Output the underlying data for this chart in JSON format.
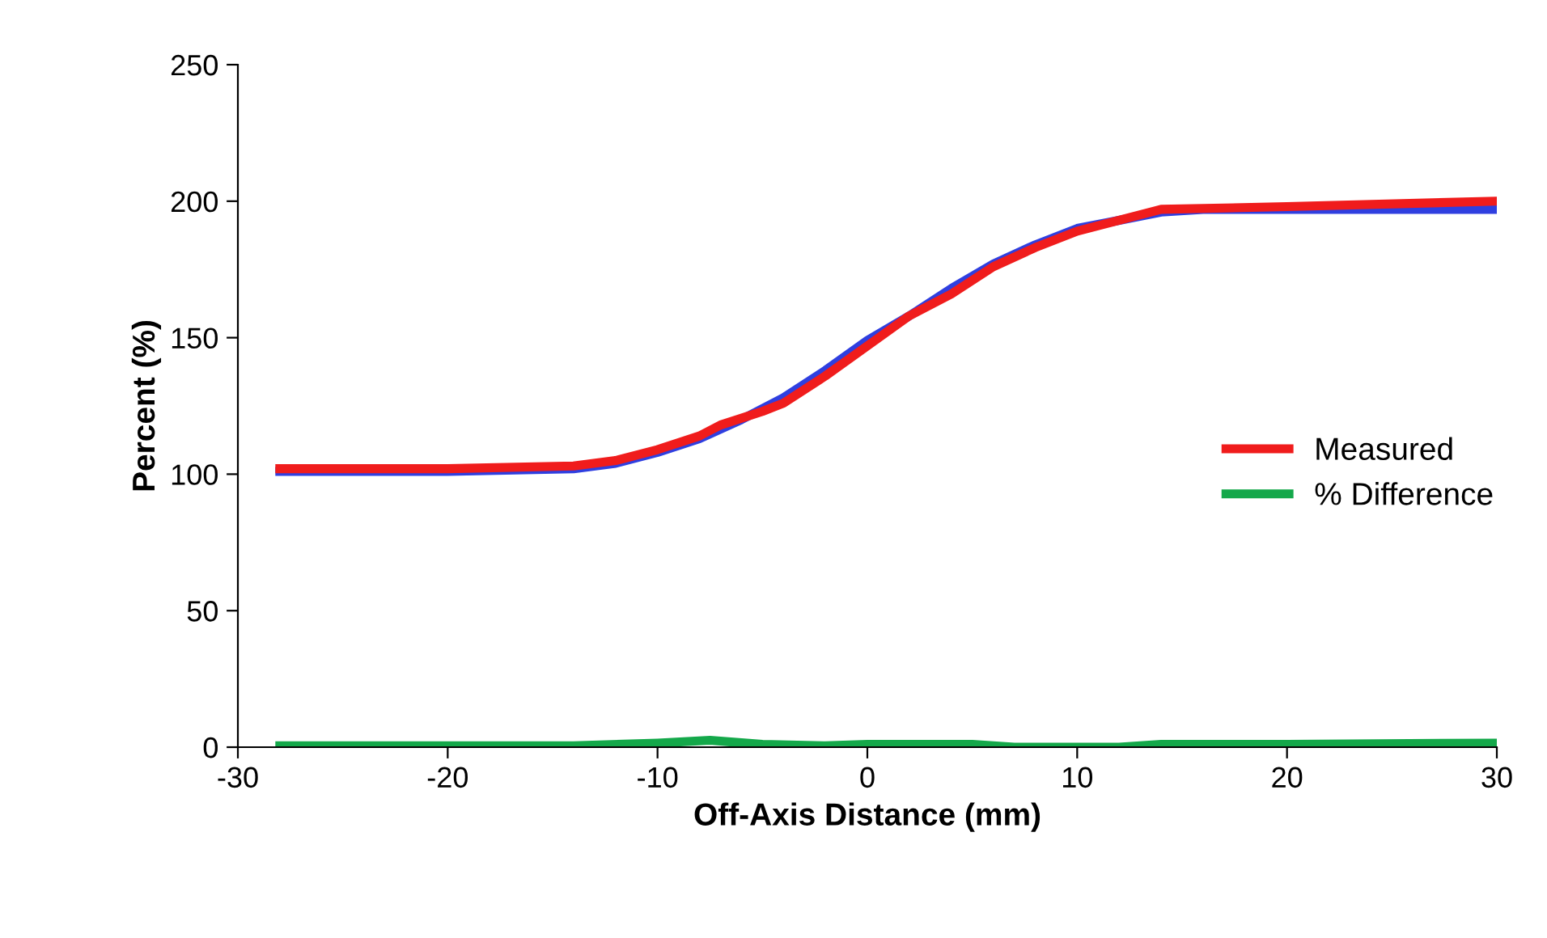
{
  "chart_data": {
    "type": "line",
    "xlabel": "Off-Axis Distance (mm)",
    "ylabel": "Percent (%)",
    "xlim": [
      -30,
      30
    ],
    "xticks": [
      -30,
      -20,
      -10,
      0,
      10,
      20,
      30
    ],
    "ylim": [
      0,
      250
    ],
    "yticks": [
      0,
      50,
      100,
      150,
      200,
      250
    ],
    "grid": false,
    "legend": "right",
    "marker": "none",
    "line_style": "solid",
    "series": [
      {
        "color": "#2f3fe0",
        "x": [
          -28,
          -20,
          -14,
          -12,
          -10,
          -8,
          -6,
          -4,
          -2,
          0,
          2,
          4,
          6,
          8,
          10,
          12,
          14,
          16,
          20,
          25,
          30
        ],
        "values": [
          101,
          101,
          102,
          104,
          108,
          113,
          120,
          128,
          138,
          149,
          158,
          168,
          177,
          184,
          190,
          193,
          196,
          197,
          197,
          197,
          197
        ]
      },
      {
        "name": "Measured",
        "color": "#f01c1c",
        "x": [
          -28,
          -20,
          -14,
          -12,
          -10,
          -8,
          -7,
          -5,
          -4,
          -2,
          0,
          2,
          4,
          6,
          8,
          10,
          12,
          14,
          20,
          30
        ],
        "values": [
          102,
          102,
          103,
          105,
          109,
          114,
          118,
          123,
          126,
          136,
          147,
          158,
          166,
          176,
          183,
          189,
          193,
          197,
          198,
          200
        ]
      },
      {
        "name": "% Difference",
        "color": "#14a84a",
        "x": [
          -28,
          -14,
          -10,
          -7.5,
          -5,
          -2,
          0,
          5,
          7,
          10,
          12,
          14,
          20,
          30
        ],
        "values": [
          0.5,
          0.5,
          1.5,
          2.5,
          1,
          0.5,
          1,
          1,
          0,
          0,
          0,
          1,
          1,
          1.5
        ]
      }
    ]
  }
}
